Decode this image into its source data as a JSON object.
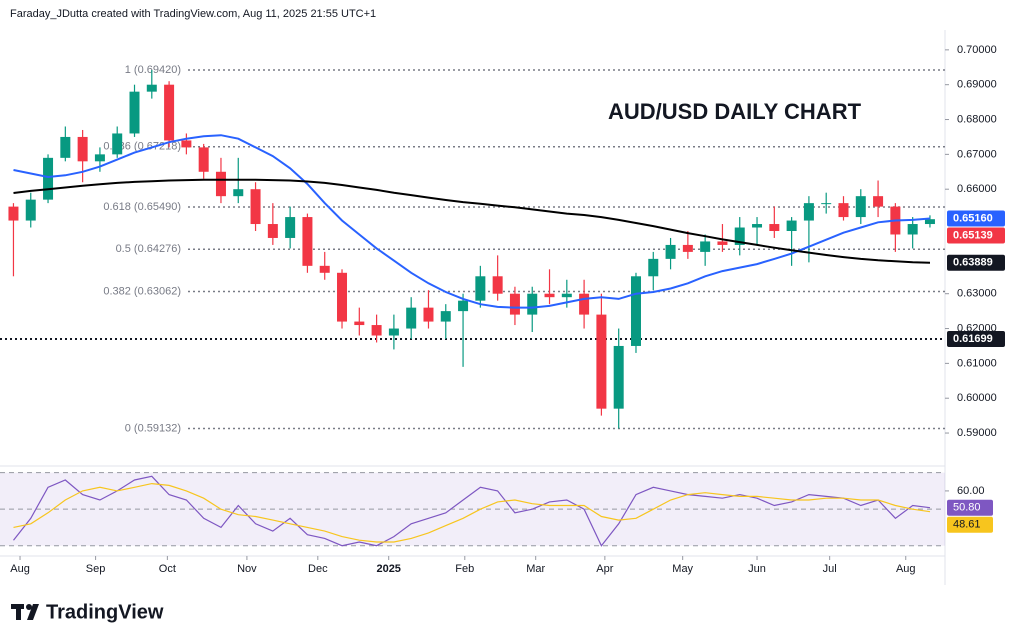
{
  "chart_data": {
    "type": "candlestick",
    "subtitle": "Faraday_JDutta created with TradingView.com, Aug 11, 2025 21:55 UTC+1",
    "title": "AUD/USD DAILY CHART",
    "brand": "TradingView",
    "up_color": "#089981",
    "down_color": "#f23645",
    "open": [
      0.655,
      0.651,
      0.657,
      0.669,
      0.675,
      0.668,
      0.67,
      0.676,
      0.688,
      0.69,
      0.674,
      0.672,
      0.665,
      0.658,
      0.66,
      0.65,
      0.646,
      0.652,
      0.638,
      0.636,
      0.622,
      0.621,
      0.618,
      0.62,
      0.626,
      0.622,
      0.625,
      0.628,
      0.635,
      0.63,
      0.624,
      0.63,
      0.629,
      0.63,
      0.624,
      0.597,
      0.615,
      0.635,
      0.64,
      0.644,
      0.642,
      0.645,
      0.644,
      0.649,
      0.65,
      0.648,
      0.651,
      0.656,
      0.656,
      0.652,
      0.658,
      0.655,
      0.647,
      0.65
    ],
    "high": [
      0.656,
      0.659,
      0.67,
      0.678,
      0.677,
      0.672,
      0.678,
      0.69,
      0.6942,
      0.691,
      0.676,
      0.673,
      0.669,
      0.669,
      0.662,
      0.656,
      0.655,
      0.653,
      0.642,
      0.637,
      0.626,
      0.624,
      0.624,
      0.629,
      0.631,
      0.627,
      0.63,
      0.638,
      0.641,
      0.632,
      0.632,
      0.637,
      0.634,
      0.634,
      0.63,
      0.62,
      0.636,
      0.642,
      0.646,
      0.648,
      0.647,
      0.65,
      0.652,
      0.652,
      0.655,
      0.652,
      0.658,
      0.659,
      0.658,
      0.66,
      0.6625,
      0.656,
      0.652,
      0.6525
    ],
    "low": [
      0.635,
      0.649,
      0.656,
      0.668,
      0.662,
      0.665,
      0.669,
      0.675,
      0.686,
      0.672,
      0.67,
      0.663,
      0.656,
      0.656,
      0.648,
      0.644,
      0.643,
      0.636,
      0.634,
      0.62,
      0.618,
      0.616,
      0.614,
      0.617,
      0.62,
      0.617,
      0.609,
      0.626,
      0.628,
      0.621,
      0.619,
      0.627,
      0.626,
      0.62,
      0.595,
      0.5913,
      0.613,
      0.631,
      0.637,
      0.64,
      0.638,
      0.642,
      0.641,
      0.644,
      0.646,
      0.638,
      0.639,
      0.653,
      0.651,
      0.65,
      0.652,
      0.642,
      0.643,
      0.649
    ],
    "close": [
      0.651,
      0.657,
      0.669,
      0.675,
      0.668,
      0.67,
      0.676,
      0.688,
      0.69,
      0.674,
      0.672,
      0.665,
      0.658,
      0.66,
      0.65,
      0.646,
      0.652,
      0.638,
      0.636,
      0.622,
      0.621,
      0.618,
      0.62,
      0.626,
      0.622,
      0.625,
      0.628,
      0.635,
      0.63,
      0.624,
      0.63,
      0.629,
      0.63,
      0.624,
      0.597,
      0.615,
      0.635,
      0.64,
      0.644,
      0.642,
      0.645,
      0.644,
      0.649,
      0.65,
      0.648,
      0.651,
      0.656,
      0.656,
      0.652,
      0.658,
      0.655,
      0.647,
      0.65,
      0.65139
    ],
    "moving_averages": [
      {
        "color": "#2962ff",
        "values": [
          0.6655,
          0.6645,
          0.6635,
          0.664,
          0.665,
          0.6665,
          0.6685,
          0.6705,
          0.672,
          0.6735,
          0.6745,
          0.6752,
          0.6755,
          0.6745,
          0.672,
          0.6695,
          0.666,
          0.6615,
          0.656,
          0.651,
          0.647,
          0.643,
          0.6395,
          0.636,
          0.633,
          0.6305,
          0.6285,
          0.627,
          0.6262,
          0.626,
          0.626,
          0.6265,
          0.6275,
          0.6285,
          0.629,
          0.6285,
          0.63,
          0.6305,
          0.6315,
          0.633,
          0.635,
          0.6365,
          0.6375,
          0.6385,
          0.64,
          0.6415,
          0.6435,
          0.6455,
          0.6475,
          0.649,
          0.6505,
          0.651,
          0.6512,
          0.6516
        ]
      },
      {
        "color": "#000000",
        "values": [
          0.6589,
          0.6595,
          0.66,
          0.6605,
          0.661,
          0.6614,
          0.6618,
          0.6621,
          0.6623,
          0.6625,
          0.6626,
          0.6627,
          0.6627,
          0.6627,
          0.6627,
          0.6626,
          0.6625,
          0.6622,
          0.6618,
          0.6612,
          0.6605,
          0.6598,
          0.659,
          0.6583,
          0.6576,
          0.6569,
          0.6563,
          0.6558,
          0.6553,
          0.6548,
          0.6542,
          0.6536,
          0.653,
          0.6526,
          0.652,
          0.6512,
          0.6503,
          0.6494,
          0.6484,
          0.6474,
          0.6465,
          0.6456,
          0.6448,
          0.644,
          0.6432,
          0.6425,
          0.6418,
          0.6411,
          0.6405,
          0.64,
          0.6396,
          0.6393,
          0.639,
          0.6389
        ]
      }
    ],
    "fib_levels": [
      {
        "value": 0.6942,
        "label": "1 (0.69420)"
      },
      {
        "value": 0.67218,
        "label": "0.786 (0.67218)"
      },
      {
        "value": 0.6549,
        "label": "0.618 (0.65490)"
      },
      {
        "value": 0.64276,
        "label": "0.5 (0.64276)"
      },
      {
        "value": 0.63062,
        "label": "0.382 (0.63062)"
      },
      {
        "value": 0.59132,
        "label": "0 (0.59132)"
      }
    ],
    "support_line": {
      "value": 0.61699,
      "label": "0.61699"
    },
    "price_labels": [
      {
        "value": 0.6516,
        "label": "0.65160",
        "color": "#2962ff"
      },
      {
        "value": 0.65139,
        "label": "0.65139",
        "color": "#f23645"
      },
      {
        "value": 0.63889,
        "label": "0.63889",
        "color": "#131722"
      }
    ],
    "ylim": [
      0.5814,
      0.7057
    ],
    "yticks": [
      {
        "value": 0.7,
        "label": "0.70000"
      },
      {
        "value": 0.69,
        "label": "0.69000"
      },
      {
        "value": 0.68,
        "label": "0.68000"
      },
      {
        "value": 0.67,
        "label": "0.67000"
      },
      {
        "value": 0.66,
        "label": "0.66000"
      },
      {
        "value": 0.63,
        "label": "0.63000"
      },
      {
        "value": 0.62,
        "label": "0.62000"
      },
      {
        "value": 0.61,
        "label": "0.61000"
      },
      {
        "value": 0.6,
        "label": "0.60000"
      },
      {
        "value": 0.59,
        "label": "0.59000"
      }
    ],
    "xlim": [
      -0.2,
      53.87
    ],
    "xticks": [
      {
        "value": 0.38,
        "label": "Aug"
      },
      {
        "value": 4.75,
        "label": "Sep"
      },
      {
        "value": 8.9,
        "label": "Oct"
      },
      {
        "value": 13.5,
        "label": "Nov"
      },
      {
        "value": 17.6,
        "label": "Dec"
      },
      {
        "value": 21.7,
        "label": "2025"
      },
      {
        "value": 26.1,
        "label": "Feb"
      },
      {
        "value": 30.2,
        "label": "Mar"
      },
      {
        "value": 34.2,
        "label": "Apr"
      },
      {
        "value": 38.7,
        "label": "May"
      },
      {
        "value": 43.0,
        "label": "Jun"
      },
      {
        "value": 47.2,
        "label": "Jul"
      },
      {
        "value": 51.6,
        "label": "Aug"
      }
    ],
    "rsi": {
      "ylim": [
        26,
        72
      ],
      "yticks": [
        {
          "value": 60,
          "label": "60.00"
        }
      ],
      "levels": [
        70,
        50,
        30
      ],
      "series": [
        {
          "color": "#7e57c2",
          "values": [
            33,
            45,
            62,
            66,
            58,
            55,
            60,
            66,
            68,
            58,
            55,
            45,
            40,
            52,
            42,
            38,
            45,
            36,
            34,
            30,
            32,
            30,
            35,
            42,
            45,
            48,
            55,
            62,
            60,
            48,
            50,
            54,
            55,
            50,
            30,
            42,
            58,
            62,
            60,
            58,
            57,
            56,
            58,
            56,
            52,
            54,
            58,
            57,
            56,
            52,
            55,
            45,
            52,
            50.8
          ],
          "label": "50.80",
          "text_color": "#ffffff"
        },
        {
          "color": "#f7c51e",
          "values": [
            40,
            42,
            48,
            55,
            60,
            62,
            60,
            62,
            64,
            63,
            60,
            56,
            50,
            47,
            46,
            44,
            42,
            40,
            38,
            35,
            33,
            32,
            32,
            34,
            37,
            41,
            45,
            50,
            54,
            55,
            53,
            52,
            52,
            52,
            46,
            44,
            45,
            50,
            55,
            58,
            59,
            58,
            57,
            57,
            56,
            55,
            55,
            56,
            56,
            55,
            55,
            52,
            50,
            48.61
          ],
          "label": "48.61",
          "text_color": "#131722"
        }
      ]
    }
  }
}
